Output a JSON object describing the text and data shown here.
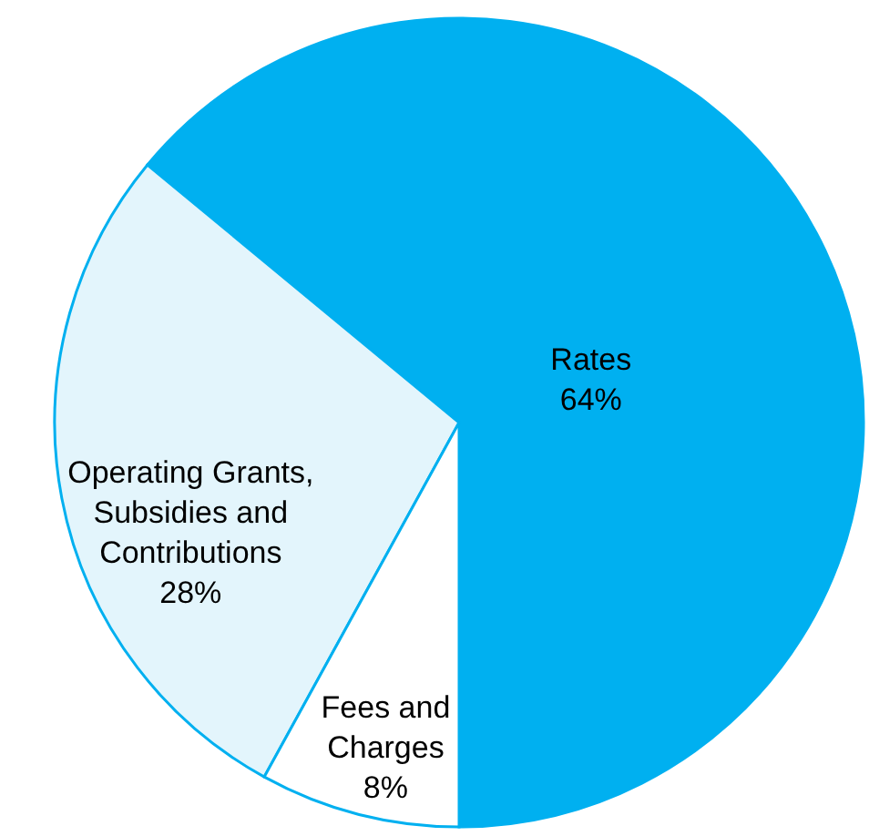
{
  "chart_data": {
    "type": "pie",
    "categories": [
      "Rates",
      "Operating Grants, Subsidies and Contributions",
      "Fees and Charges"
    ],
    "values": [
      64,
      28,
      8
    ],
    "value_labels": [
      "64%",
      "28%",
      "8%"
    ],
    "colors": [
      "#00b0f0",
      "#e3f5fc",
      "#ffffff"
    ]
  }
}
